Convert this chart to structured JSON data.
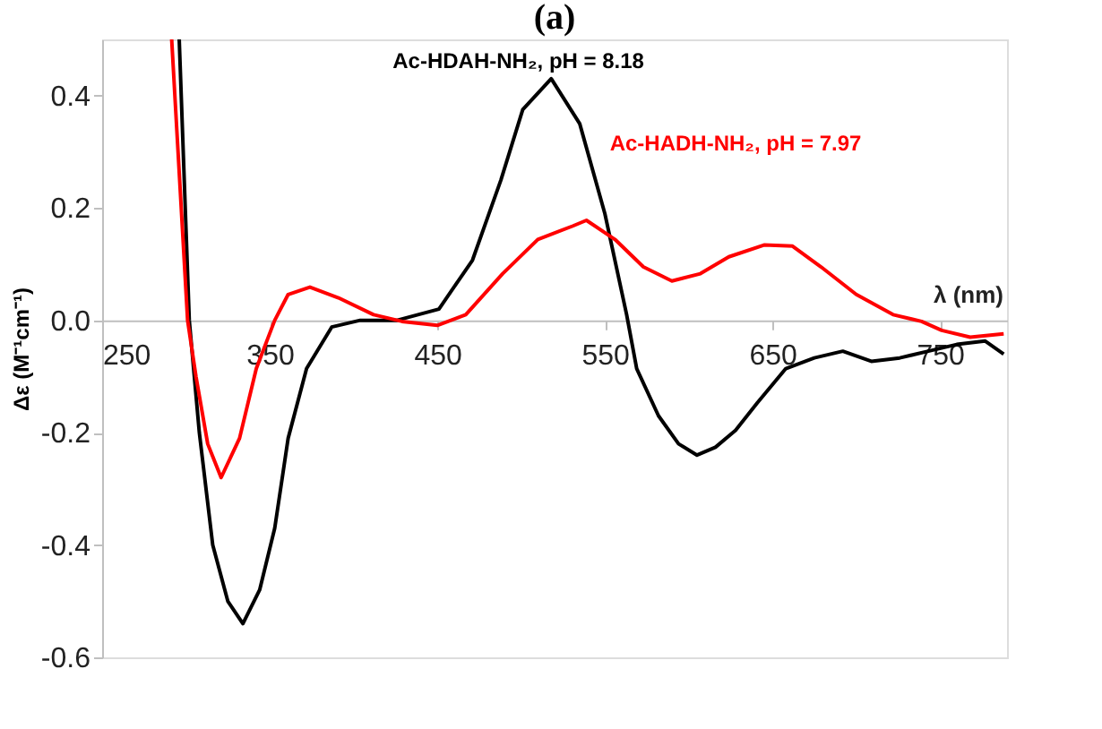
{
  "chart_data": {
    "type": "line",
    "title": "(a)",
    "xlabel": "λ (nm)",
    "ylabel": "Δε (M⁻¹cm⁻¹)",
    "xlim": [
      250,
      790
    ],
    "ylim": [
      -0.6,
      0.5
    ],
    "xticks": [
      250,
      350,
      450,
      550,
      650,
      750
    ],
    "yticks": [
      {
        "value": -0.6,
        "label": "-0.6"
      },
      {
        "value": -0.4,
        "label": "-0.4"
      },
      {
        "value": -0.2,
        "label": "-0.2"
      },
      {
        "value": 0,
        "label": "0.0"
      },
      {
        "value": 0.2,
        "label": "0.2"
      },
      {
        "value": 0.4,
        "label": "0.4"
      }
    ],
    "grid": false,
    "marker": "none",
    "line_style": "solid",
    "series": [
      {
        "name": "Ac-HDAH-NH₂, pH = 8.18",
        "color": "#000000",
        "x": [
          296,
          302,
          308,
          316,
          325,
          334,
          344,
          353,
          361,
          372,
          387,
          404,
          426,
          451,
          471,
          488,
          501,
          518,
          535,
          550,
          563,
          569,
          582,
          594,
          605,
          616,
          628,
          641,
          658,
          675,
          692,
          709,
          726,
          743,
          760,
          777,
          788
        ],
        "values": [
          0.5,
          0.0,
          -0.2,
          -0.4,
          -0.5,
          -0.54,
          -0.48,
          -0.37,
          -0.21,
          -0.086,
          -0.012,
          0.0,
          0.0,
          0.02,
          0.107,
          0.25,
          0.375,
          0.43,
          0.35,
          0.19,
          0.01,
          -0.086,
          -0.17,
          -0.22,
          -0.24,
          -0.226,
          -0.196,
          -0.147,
          -0.086,
          -0.067,
          -0.055,
          -0.073,
          -0.067,
          -0.055,
          -0.043,
          -0.037,
          -0.06
        ]
      },
      {
        "name": "Ac-HADH-NH₂, pH = 7.97",
        "color": "#ff0000",
        "x": [
          291.5,
          301,
          306,
          313,
          321,
          332,
          342,
          353,
          361,
          374,
          391,
          412,
          429,
          450,
          467,
          489,
          510,
          531,
          539,
          556,
          573,
          590,
          607,
          624,
          645,
          662,
          679,
          700,
          722,
          739,
          751,
          768,
          788
        ],
        "values": [
          0.5,
          0.0,
          -0.1,
          -0.22,
          -0.28,
          -0.21,
          -0.086,
          0.0,
          0.046,
          0.059,
          0.04,
          0.01,
          -0.002,
          -0.009,
          0.01,
          0.083,
          0.144,
          0.168,
          0.178,
          0.144,
          0.095,
          0.07,
          0.083,
          0.113,
          0.134,
          0.132,
          0.095,
          0.046,
          0.01,
          -0.002,
          -0.018,
          -0.03,
          -0.024
        ]
      }
    ]
  }
}
